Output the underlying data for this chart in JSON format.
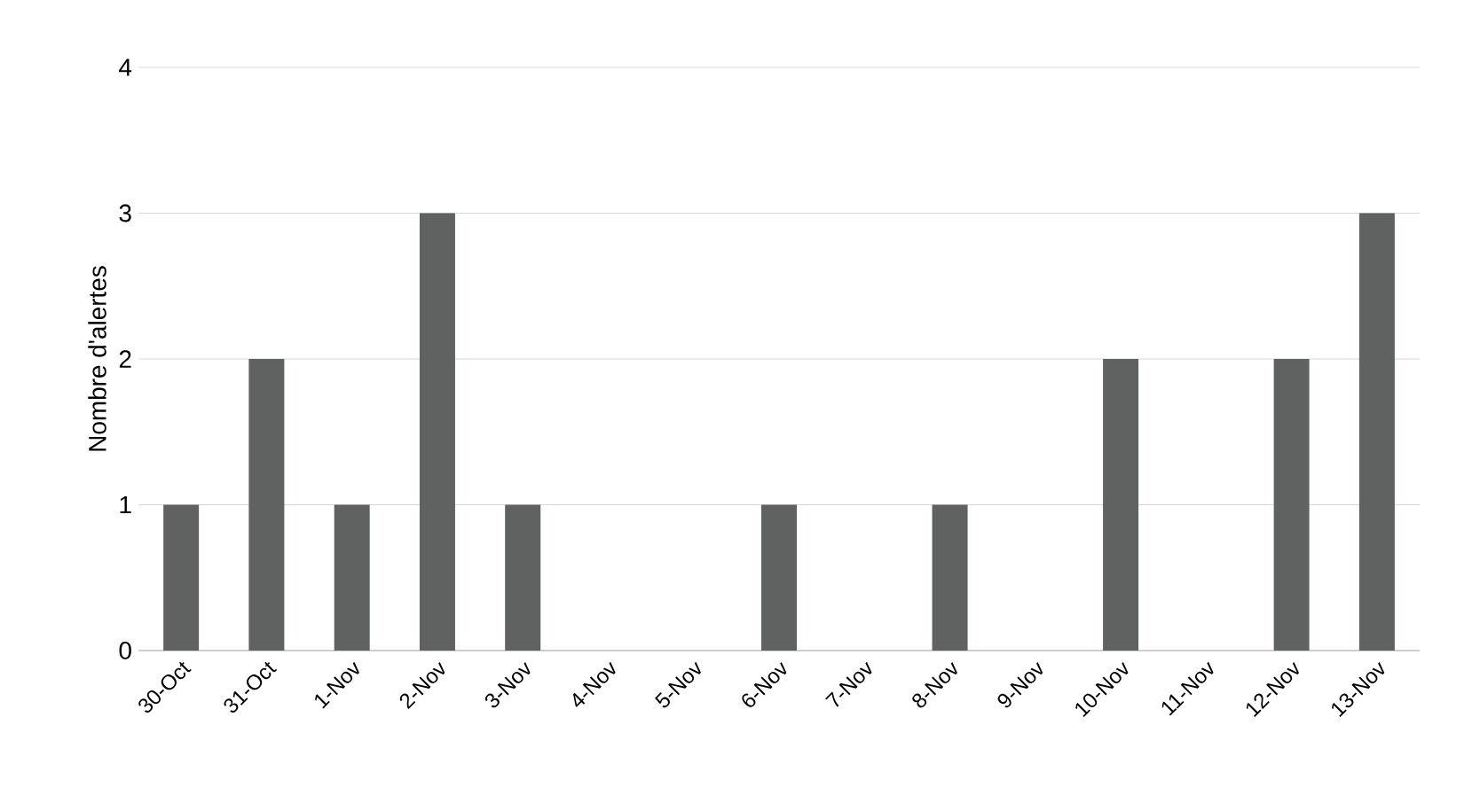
{
  "chart_data": {
    "type": "bar",
    "ylabel": "Nombre d'alertes",
    "categories": [
      "30-Oct",
      "31-Oct",
      "1-Nov",
      "2-Nov",
      "3-Nov",
      "4-Nov",
      "5-Nov",
      "6-Nov",
      "7-Nov",
      "8-Nov",
      "9-Nov",
      "10-Nov",
      "11-Nov",
      "12-Nov",
      "13-Nov"
    ],
    "values": [
      1,
      2,
      1,
      3,
      1,
      0,
      0,
      1,
      0,
      1,
      0,
      2,
      0,
      2,
      3
    ],
    "color": "#606262",
    "ylim": [
      0,
      4
    ],
    "yticks": [
      0,
      1,
      2,
      3,
      4
    ],
    "grid": "y"
  }
}
